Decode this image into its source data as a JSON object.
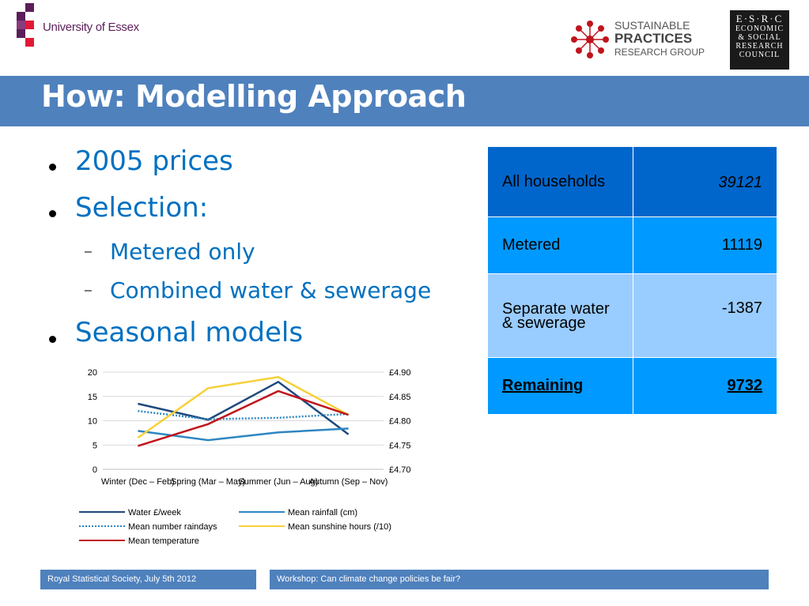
{
  "header": {
    "university": "University of Essex",
    "spr": {
      "line1": "SUSTAINABLE",
      "line2": "PRACTICES",
      "line3": "RESEARCH GROUP"
    },
    "esrc": {
      "line1": "E·S·R·C",
      "line2": "ECONOMIC",
      "line3": "& SOCIAL",
      "line4": "RESEARCH",
      "line5": "COUNCIL"
    }
  },
  "colors": {
    "band": "#4f81bd",
    "bullet_text": "#0070c0",
    "essex": "#5b1e5a",
    "essex_red": "#e31837"
  },
  "title": "How: Modelling Approach",
  "bullets": [
    {
      "text": "2005 prices"
    },
    {
      "text": "Selection:"
    },
    {
      "text": "Metered only"
    },
    {
      "text": "Combined water & sewerage"
    },
    {
      "text": "Seasonal models"
    }
  ],
  "table": [
    {
      "label": "All households",
      "value": "39121"
    },
    {
      "label": "Metered",
      "value": "11119"
    },
    {
      "label": "Separate water & sewerage",
      "value": "-1387"
    },
    {
      "label": "Remaining",
      "value": "9732"
    }
  ],
  "chart_data": {
    "type": "line",
    "categories": [
      "Winter (Dec – Feb)",
      "Spring (Mar – May)",
      "Summer (Jun – Aug)",
      "Autumn (Sep – Nov)"
    ],
    "ylim_left": [
      0,
      20
    ],
    "yticks_left": [
      "0",
      "5",
      "10",
      "15",
      "20"
    ],
    "ylim_right": [
      4.7,
      4.9
    ],
    "yticks_right": [
      "£4.70",
      "£4.75",
      "£4.80",
      "£4.85",
      "£4.90"
    ],
    "grid": true,
    "legend_position": "bottom",
    "series": [
      {
        "name": "Water £/week",
        "axis": "right",
        "color": "#1f497d",
        "dash": false,
        "values": [
          4.835,
          4.802,
          4.88,
          4.772
        ]
      },
      {
        "name": "Mean rainfall (cm)",
        "axis": "left",
        "color": "#2e86c1",
        "dash": false,
        "values": [
          7.9,
          6.0,
          7.6,
          8.4
        ]
      },
      {
        "name": "Mean number raindays",
        "axis": "left",
        "color": "#2e86c1",
        "dash": true,
        "values": [
          12.0,
          10.3,
          10.6,
          11.4
        ]
      },
      {
        "name": "Mean sunshine hours (/10)",
        "axis": "left",
        "color": "#f7d038",
        "dash": false,
        "values": [
          6.5,
          16.7,
          19.0,
          11.2
        ]
      },
      {
        "name": "Mean temperature",
        "axis": "left",
        "color": "#c0141c",
        "dash": false,
        "values": [
          4.8,
          9.3,
          16.1,
          11.2
        ]
      }
    ]
  },
  "footer": {
    "left": "Royal Statistical Society, July 5th 2012",
    "right": "Workshop: Can climate change policies be fair?"
  }
}
